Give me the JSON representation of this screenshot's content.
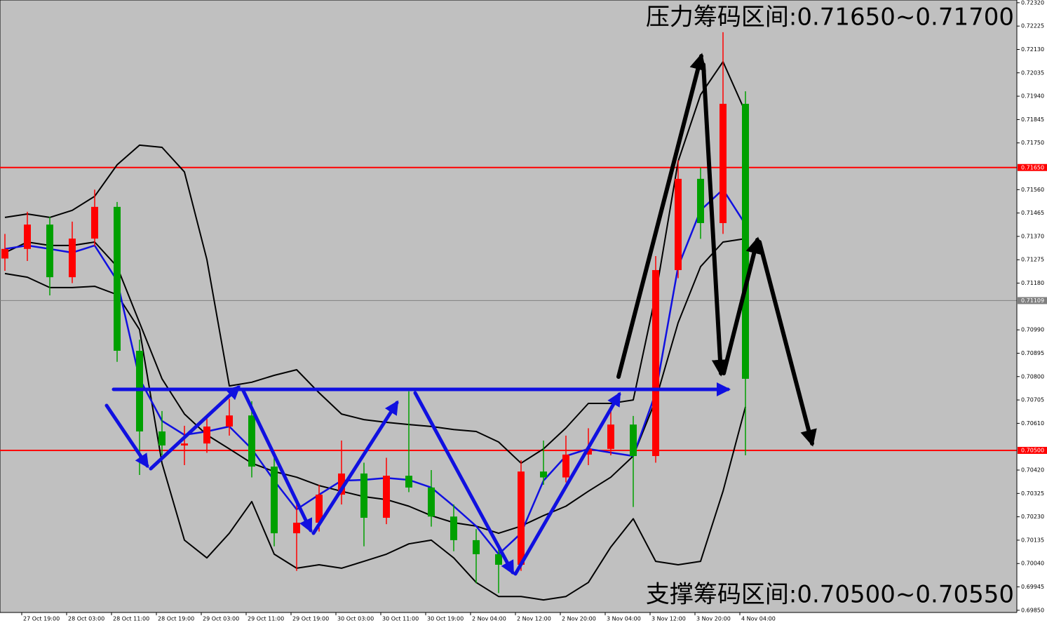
{
  "chart_data": {
    "type": "candlestick",
    "annotations": [
      "压力筹码区间:0.71650~0.71700",
      "支撑筹码区间:0.70500~0.70550"
    ],
    "x": [
      0,
      4,
      8,
      12,
      16,
      20,
      24,
      28,
      32,
      36,
      40,
      44,
      48,
      52,
      56,
      60,
      64,
      68,
      72,
      76,
      80,
      84,
      88,
      92,
      96,
      100,
      104,
      108,
      112,
      116,
      120,
      124,
      128,
      132
    ],
    "open": [
      0.7128,
      0.71319,
      0.71418,
      0.71204,
      0.71361,
      0.7149,
      0.70905,
      0.70577,
      0.7052,
      0.70528,
      0.70597,
      0.70642,
      0.70434,
      0.70163,
      0.70206,
      0.7032,
      0.70406,
      0.70226,
      0.70397,
      0.70349,
      0.70231,
      0.70135,
      0.70078,
      0.70035,
      0.70414,
      0.7039,
      0.70483,
      0.70506,
      0.70605,
      0.70477,
      0.71233,
      0.71604,
      0.71424,
      0.71909
    ],
    "high": [
      0.7138,
      0.7147,
      0.7145,
      0.7143,
      0.7156,
      0.7151,
      0.7095,
      0.7066,
      0.706,
      0.7064,
      0.7071,
      0.707,
      0.7047,
      0.7029,
      0.7036,
      0.7054,
      0.7045,
      0.7047,
      0.7074,
      0.7042,
      0.7028,
      0.7018,
      0.7012,
      0.7046,
      0.7054,
      0.7056,
      0.7059,
      0.7068,
      0.7064,
      0.7129,
      0.7168,
      0.7165,
      0.722,
      0.7196
    ],
    "low": [
      0.7123,
      0.7127,
      0.7113,
      0.7118,
      0.7133,
      0.7086,
      0.704,
      0.7048,
      0.7044,
      0.7049,
      0.7056,
      0.7039,
      0.7011,
      0.7001,
      0.7017,
      0.7028,
      0.7011,
      0.702,
      0.7033,
      0.7019,
      0.7009,
      0.6996,
      0.6992,
      0.7001,
      0.7036,
      0.7037,
      0.7044,
      0.7048,
      0.7027,
      0.7045,
      0.712,
      0.7136,
      0.7138,
      0.7048
    ],
    "close": [
      0.71319,
      0.71418,
      0.71204,
      0.71361,
      0.7149,
      0.70905,
      0.70577,
      0.7052,
      0.70528,
      0.70597,
      0.70642,
      0.70434,
      0.70163,
      0.70206,
      0.7032,
      0.70406,
      0.70226,
      0.70397,
      0.70349,
      0.70231,
      0.70135,
      0.70078,
      0.70035,
      0.70414,
      0.7039,
      0.70483,
      0.70506,
      0.70605,
      0.70477,
      0.71233,
      0.71604,
      0.71424,
      0.71909,
      0.70791
    ],
    "up_color": "#ff0000",
    "down_color": "#00a000",
    "lines": [
      {
        "color": "#000000",
        "values": [
          0.71447,
          0.71461,
          0.71447,
          0.71476,
          0.71533,
          0.71661,
          0.71741,
          0.71732,
          0.71632,
          0.71276,
          0.70762,
          0.70777,
          0.70805,
          0.70828,
          0.70734,
          0.70648,
          0.70625,
          0.70614,
          0.70605,
          0.70597,
          0.70585,
          0.70577,
          0.70534,
          0.70448,
          0.70506,
          0.70591,
          0.70691,
          0.70691,
          0.70705,
          0.71133,
          0.71675,
          0.71946,
          0.7208,
          0.71875
        ]
      },
      {
        "color": "#000000",
        "values": [
          0.71219,
          0.71204,
          0.71162,
          0.71162,
          0.71167,
          0.71133,
          0.70991,
          0.70448,
          0.70135,
          0.70063,
          0.70163,
          0.70292,
          0.70078,
          0.70021,
          0.70035,
          0.70021,
          0.70049,
          0.70078,
          0.7012,
          0.70135,
          0.70063,
          0.69963,
          0.69906,
          0.69906,
          0.69892,
          0.69906,
          0.69963,
          0.70107,
          0.70222,
          0.70049,
          0.70035,
          0.70049,
          0.70334,
          0.70677
        ]
      },
      {
        "color": "#000000",
        "values": [
          0.71304,
          0.71347,
          0.71333,
          0.71333,
          0.71347,
          0.71247,
          0.71019,
          0.70791,
          0.70648,
          0.70563,
          0.70506,
          0.70448,
          0.70414,
          0.70391,
          0.70357,
          0.70334,
          0.70312,
          0.703,
          0.70273,
          0.70235,
          0.70206,
          0.70192,
          0.70163,
          0.70192,
          0.70235,
          0.70273,
          0.70334,
          0.70391,
          0.70477,
          0.70705,
          0.71019,
          0.71247,
          0.71347,
          0.71361
        ]
      },
      {
        "color": "#1010e0",
        "values": [
          0.71319,
          0.71333,
          0.71319,
          0.71304,
          0.71333,
          0.7119,
          0.70791,
          0.7062,
          0.70563,
          0.70577,
          0.70597,
          0.70506,
          0.70377,
          0.7026,
          0.7032,
          0.70377,
          0.7038,
          0.70388,
          0.7038,
          0.70349,
          0.70273,
          0.70192,
          0.70078,
          0.70163,
          0.70377,
          0.70477,
          0.70506,
          0.70491,
          0.70477,
          0.70734,
          0.71247,
          0.71476,
          0.71561,
          0.71418
        ]
      }
    ],
    "hlines": [
      {
        "value": 0.7165,
        "label": "0.71650",
        "color": "#ff0000"
      },
      {
        "value": 0.71109,
        "label": "0.71109",
        "color": "#808080"
      },
      {
        "value": 0.705,
        "label": "0.70500",
        "color": "#ff0000"
      }
    ],
    "xlim": [
      -0.875,
      180.375
    ],
    "ylim": [
      0.69841,
      0.72331
    ],
    "xticks": [
      {
        "value": 3,
        "label": "27 Oct 19:00"
      },
      {
        "value": 11,
        "label": "28 Oct 03:00"
      },
      {
        "value": 19,
        "label": "28 Oct 11:00"
      },
      {
        "value": 27,
        "label": "28 Oct 19:00"
      },
      {
        "value": 35,
        "label": "29 Oct 03:00"
      },
      {
        "value": 43,
        "label": "29 Oct 11:00"
      },
      {
        "value": 51,
        "label": "29 Oct 19:00"
      },
      {
        "value": 59,
        "label": "30 Oct 03:00"
      },
      {
        "value": 67,
        "label": "30 Oct 11:00"
      },
      {
        "value": 75,
        "label": "30 Oct 19:00"
      },
      {
        "value": 83,
        "label": "2 Nov 04:00"
      },
      {
        "value": 91,
        "label": "2 Nov 12:00"
      },
      {
        "value": 99,
        "label": "2 Nov 20:00"
      },
      {
        "value": 107,
        "label": "3 Nov 04:00"
      },
      {
        "value": 115,
        "label": "3 Nov 12:00"
      },
      {
        "value": 123,
        "label": "3 Nov 20:00"
      },
      {
        "value": 131,
        "label": "4 Nov 04:00"
      }
    ],
    "yticks": [
      {
        "value": 0.7232,
        "label": "0.72320"
      },
      {
        "value": 0.72225,
        "label": "0.72225"
      },
      {
        "value": 0.7213,
        "label": "0.72130"
      },
      {
        "value": 0.72035,
        "label": "0.72035"
      },
      {
        "value": 0.7194,
        "label": "0.71940"
      },
      {
        "value": 0.71845,
        "label": "0.71845"
      },
      {
        "value": 0.7175,
        "label": "0.71750"
      },
      {
        "value": 0.7156,
        "label": "0.71560"
      },
      {
        "value": 0.71465,
        "label": "0.71465"
      },
      {
        "value": 0.7137,
        "label": "0.71370"
      },
      {
        "value": 0.71275,
        "label": "0.71275"
      },
      {
        "value": 0.7118,
        "label": "0.71180"
      },
      {
        "value": 0.7099,
        "label": "0.70990"
      },
      {
        "value": 0.70895,
        "label": "0.70895"
      },
      {
        "value": 0.708,
        "label": "0.70800"
      },
      {
        "value": 0.70705,
        "label": "0.70705"
      },
      {
        "value": 0.7061,
        "label": "0.70610"
      },
      {
        "value": 0.7042,
        "label": "0.70420"
      },
      {
        "value": 0.70325,
        "label": "0.70325"
      },
      {
        "value": 0.7023,
        "label": "0.70230"
      },
      {
        "value": 0.70135,
        "label": "0.70135"
      },
      {
        "value": 0.7004,
        "label": "0.70040"
      },
      {
        "value": 0.69945,
        "label": "0.69945"
      },
      {
        "value": 0.6985,
        "label": "0.69850"
      }
    ]
  }
}
